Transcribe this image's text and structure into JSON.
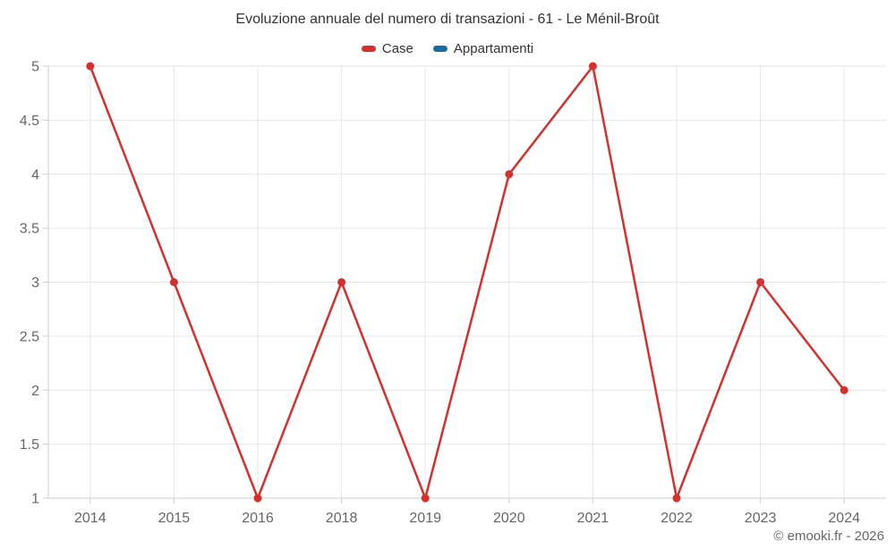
{
  "page": {
    "credit": "© emooki.fr - 2026"
  },
  "chart_data": {
    "type": "line",
    "title": "Evoluzione annuale del numero di transazioni - 61 - Le Ménil-Broût",
    "categories": [
      "2014",
      "2015",
      "2016",
      "2018",
      "2019",
      "2020",
      "2021",
      "2022",
      "2023",
      "2024"
    ],
    "series": [
      {
        "name": "Case",
        "color": "#d5302c",
        "values": [
          5,
          3,
          1,
          3,
          1,
          4,
          5,
          1,
          3,
          2
        ]
      },
      {
        "name": "Appartamenti",
        "color": "#1a6da3",
        "values": []
      }
    ],
    "xlabel": "",
    "ylabel": "",
    "ylim": [
      1,
      5
    ],
    "yticks": [
      1,
      1.5,
      2,
      2.5,
      3,
      3.5,
      4,
      4.5,
      5
    ],
    "grid": true,
    "legend_position": "top",
    "colors": {
      "grid_line": "#e6e6e6",
      "axis_line": "#cccccc",
      "tick_mark": "#cccccc",
      "axis_label": "#666666",
      "title_text": "#333333"
    }
  }
}
